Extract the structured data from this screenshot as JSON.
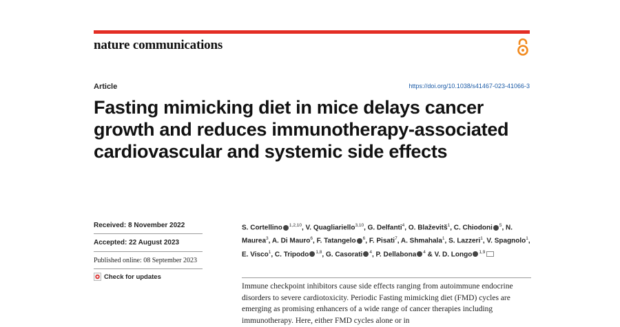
{
  "header": {
    "journal": "nature communications",
    "open_access_icon": "open-access-icon"
  },
  "article": {
    "label": "Article",
    "doi": "https://doi.org/10.1038/s41467-023-41066-3",
    "title": "Fasting mimicking diet in mice delays cancer growth and reduces immunotherapy-associated cardiovascular and systemic side effects"
  },
  "dates": {
    "received": "Received: 8 November 2022",
    "accepted": "Accepted: 22 August 2023",
    "published": "Published online: 08 September 2023"
  },
  "check_updates": "Check for updates",
  "authors": [
    {
      "name": "S. Cortellino",
      "aff": "1,2,10",
      "orcid": true,
      "sep": ", "
    },
    {
      "name": "V. Quagliariello",
      "aff": "3,10",
      "orcid": false,
      "sep": ", "
    },
    {
      "name": "G. Delfanti",
      "aff": "4",
      "orcid": false,
      "sep": ", "
    },
    {
      "name": "O. Blaževitš",
      "aff": "1",
      "orcid": false,
      "sep": ", "
    },
    {
      "name": "C. Chiodoni",
      "aff": "5",
      "orcid": true,
      "sep": ", "
    },
    {
      "name": "N. Maurea",
      "aff": "3",
      "orcid": false,
      "sep": ", "
    },
    {
      "name": "A. Di Mauro",
      "aff": "6",
      "orcid": false,
      "sep": ", "
    },
    {
      "name": "F. Tatangelo",
      "aff": "6",
      "orcid": true,
      "sep": ", "
    },
    {
      "name": "F. Pisati",
      "aff": "7",
      "orcid": false,
      "sep": ", "
    },
    {
      "name": "A. Shmahala",
      "aff": "1",
      "orcid": false,
      "sep": ", "
    },
    {
      "name": "S. Lazzeri",
      "aff": "1",
      "orcid": false,
      "sep": ", "
    },
    {
      "name": "V. Spagnolo",
      "aff": "1",
      "orcid": false,
      "sep": ", "
    },
    {
      "name": "E. Visco",
      "aff": "1",
      "orcid": false,
      "sep": ", "
    },
    {
      "name": "C. Tripodo",
      "aff": "1,8",
      "orcid": true,
      "sep": ", "
    },
    {
      "name": "G. Casorati",
      "aff": "4",
      "orcid": true,
      "sep": ", "
    },
    {
      "name": "P. Dellabona",
      "aff": "4",
      "orcid": true,
      "sep": " & "
    },
    {
      "name": "V. D. Longo",
      "aff": "1,9",
      "orcid": true,
      "sep": ""
    }
  ],
  "abstract": "Immune checkpoint inhibitors cause side effects ranging from autoimmune endocrine disorders to severe cardiotoxicity. Periodic Fasting mimicking diet (FMD) cycles are emerging as promising enhancers of a wide range of cancer therapies including immunotherapy. Here, either FMD cycles alone or in"
}
